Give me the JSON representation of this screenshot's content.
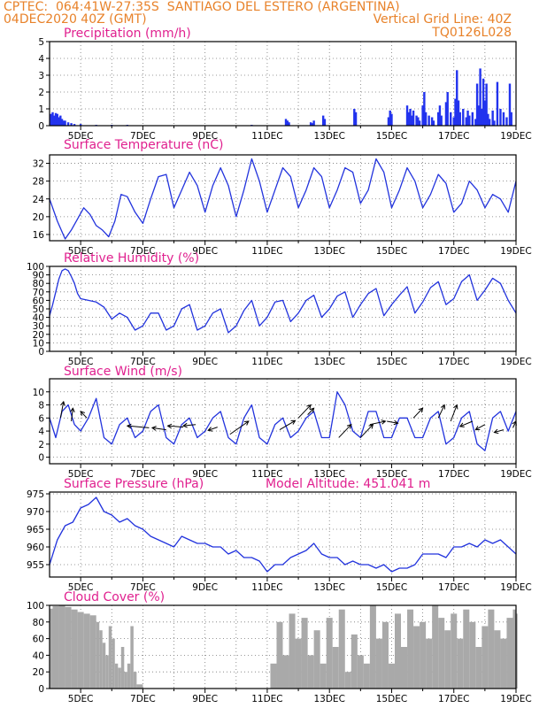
{
  "header": {
    "line1_left": "CPTEC:  064:41W-27:35S  SANTIAGO DEL ESTERO (ARGENTINA)",
    "line2_left": "04DEC2020 40Z (GMT)",
    "line2_right": "Vertical Grid Line: 40Z",
    "line3_right": "TQ0126L028"
  },
  "colors": {
    "header": "#e8822a",
    "title": "#e0208f",
    "line": "#2233dd",
    "bar": "#2233ee",
    "cloud": "#a9a9a9"
  },
  "x_axis": {
    "labels": [
      "5DEC",
      "7DEC",
      "9DEC",
      "11DEC",
      "13DEC",
      "15DEC",
      "17DEC",
      "19DEC"
    ],
    "range_days": [
      4.0,
      19.0
    ]
  },
  "chart_data": [
    {
      "id": "precip",
      "type": "bar",
      "title": "Precipitation (mm/h)",
      "ylim": [
        0,
        5
      ],
      "yticks": [
        0,
        1,
        2,
        3,
        4,
        5
      ],
      "x": [
        4.05,
        4.1,
        4.15,
        4.2,
        4.25,
        4.3,
        4.35,
        4.4,
        4.45,
        4.5,
        4.6,
        4.7,
        4.8,
        5.0,
        5.5,
        6.0,
        6.5,
        10.5,
        11.6,
        11.65,
        11.7,
        12.4,
        12.45,
        12.5,
        12.8,
        12.85,
        13.8,
        13.85,
        14.9,
        14.95,
        15.0,
        15.5,
        15.55,
        15.6,
        15.65,
        15.7,
        15.8,
        15.85,
        15.9,
        16.0,
        16.05,
        16.1,
        16.2,
        16.3,
        16.35,
        16.5,
        16.55,
        16.6,
        16.75,
        16.8,
        16.9,
        17.0,
        17.05,
        17.1,
        17.15,
        17.2,
        17.3,
        17.4,
        17.45,
        17.5,
        17.6,
        17.7,
        17.75,
        17.8,
        17.85,
        17.9,
        17.95,
        18.0,
        18.05,
        18.1,
        18.15,
        18.25,
        18.3,
        18.4,
        18.5,
        18.6,
        18.7,
        18.8,
        18.85
      ],
      "values": [
        0.7,
        0.8,
        0.6,
        0.75,
        0.7,
        0.5,
        0.6,
        0.4,
        0.3,
        0.3,
        0.2,
        0.15,
        0.1,
        0.1,
        0.05,
        0.05,
        0.05,
        0.05,
        0.4,
        0.3,
        0.2,
        0.2,
        0.15,
        0.3,
        0.6,
        0.4,
        1.0,
        0.8,
        0.5,
        0.9,
        0.7,
        1.2,
        0.8,
        1.0,
        0.6,
        0.9,
        0.6,
        0.5,
        0.3,
        1.2,
        2.0,
        0.8,
        0.6,
        0.5,
        0.3,
        0.8,
        1.2,
        0.6,
        1.4,
        2.0,
        0.8,
        0.5,
        1.6,
        3.3,
        1.5,
        0.8,
        1.0,
        0.5,
        0.9,
        0.6,
        0.8,
        0.4,
        2.5,
        1.2,
        3.4,
        1.0,
        2.8,
        1.5,
        2.5,
        0.7,
        0.4,
        0.9,
        0.3,
        2.6,
        1.0,
        0.8,
        0.5,
        2.5,
        0.8
      ]
    },
    {
      "id": "temp",
      "type": "line",
      "title": "Surface Temperature (nC)",
      "ylim": [
        14.6,
        33.9
      ],
      "yticks": [
        16,
        20,
        24,
        28,
        32
      ],
      "x": [
        4.0,
        4.25,
        4.5,
        4.7,
        4.9,
        5.1,
        5.3,
        5.5,
        5.7,
        5.9,
        6.1,
        6.3,
        6.5,
        6.75,
        7.0,
        7.25,
        7.5,
        7.75,
        8.0,
        8.25,
        8.5,
        8.75,
        9.0,
        9.25,
        9.5,
        9.75,
        10.0,
        10.25,
        10.5,
        10.75,
        11.0,
        11.25,
        11.5,
        11.75,
        12.0,
        12.25,
        12.5,
        12.75,
        13.0,
        13.25,
        13.5,
        13.75,
        14.0,
        14.25,
        14.5,
        14.75,
        15.0,
        15.25,
        15.5,
        15.75,
        16.0,
        16.25,
        16.5,
        16.75,
        17.0,
        17.25,
        17.5,
        17.75,
        18.0,
        18.25,
        18.5,
        18.75,
        19.0
      ],
      "values": [
        24,
        19,
        15,
        17,
        19.5,
        22,
        20.5,
        18,
        17,
        15.5,
        19,
        25,
        24.5,
        21,
        18.5,
        24,
        29,
        29.5,
        22,
        26,
        30,
        27,
        21,
        27,
        31,
        27,
        20,
        26,
        33,
        28,
        21,
        26,
        31,
        29,
        22,
        26,
        31,
        29,
        22,
        26,
        31,
        30,
        23,
        26,
        33,
        30,
        22,
        26,
        31,
        28,
        22,
        25,
        29.5,
        27.5,
        21,
        23,
        28,
        26,
        22,
        25,
        24,
        21,
        28
      ]
    },
    {
      "id": "rh",
      "type": "line",
      "title": "Relative Humidity (%)",
      "ylim": [
        0,
        100
      ],
      "yticks": [
        0,
        10,
        20,
        30,
        40,
        50,
        60,
        70,
        80,
        90,
        100
      ],
      "x": [
        4.0,
        4.1,
        4.2,
        4.3,
        4.4,
        4.5,
        4.6,
        4.7,
        4.8,
        4.9,
        5.0,
        5.25,
        5.5,
        5.75,
        6.0,
        6.25,
        6.5,
        6.75,
        7.0,
        7.25,
        7.5,
        7.75,
        8.0,
        8.25,
        8.5,
        8.75,
        9.0,
        9.25,
        9.5,
        9.75,
        10.0,
        10.25,
        10.5,
        10.75,
        11.0,
        11.25,
        11.5,
        11.75,
        12.0,
        12.25,
        12.5,
        12.75,
        13.0,
        13.25,
        13.5,
        13.75,
        14.0,
        14.25,
        14.5,
        14.75,
        15.0,
        15.25,
        15.5,
        15.75,
        16.0,
        16.25,
        16.5,
        16.75,
        17.0,
        17.25,
        17.5,
        17.75,
        18.0,
        18.25,
        18.5,
        18.75,
        19.0
      ],
      "values": [
        42,
        55,
        70,
        85,
        95,
        97,
        95,
        88,
        80,
        68,
        62,
        60,
        58,
        52,
        38,
        45,
        40,
        25,
        30,
        45,
        45,
        25,
        30,
        50,
        55,
        25,
        30,
        45,
        50,
        22,
        30,
        48,
        60,
        30,
        40,
        58,
        60,
        35,
        45,
        60,
        66,
        40,
        50,
        65,
        70,
        40,
        55,
        68,
        74,
        42,
        55,
        66,
        76,
        45,
        58,
        75,
        82,
        55,
        62,
        82,
        90,
        60,
        72,
        86,
        80,
        60,
        45
      ]
    },
    {
      "id": "wind",
      "type": "line",
      "title": "Surface Wind (m/s)",
      "ylim": [
        -1,
        12
      ],
      "yticks": [
        0,
        2,
        4,
        6,
        8,
        10
      ],
      "x": [
        4.0,
        4.2,
        4.4,
        4.6,
        4.8,
        5.0,
        5.25,
        5.5,
        5.75,
        6.0,
        6.25,
        6.5,
        6.75,
        7.0,
        7.25,
        7.5,
        7.75,
        8.0,
        8.25,
        8.5,
        8.75,
        9.0,
        9.25,
        9.5,
        9.75,
        10.0,
        10.25,
        10.5,
        10.75,
        11.0,
        11.25,
        11.5,
        11.75,
        12.0,
        12.25,
        12.5,
        12.75,
        13.0,
        13.25,
        13.5,
        13.75,
        14.0,
        14.25,
        14.5,
        14.75,
        15.0,
        15.25,
        15.5,
        15.75,
        16.0,
        16.25,
        16.5,
        16.75,
        17.0,
        17.25,
        17.5,
        17.75,
        18.0,
        18.25,
        18.5,
        18.75,
        19.0
      ],
      "values": [
        6,
        3,
        7,
        8,
        5,
        4,
        6,
        9,
        3,
        2,
        5,
        6,
        3,
        4,
        7,
        8,
        3,
        2,
        5,
        6,
        3,
        4,
        6,
        7,
        3,
        2,
        6,
        8,
        3,
        2,
        5,
        6,
        3,
        4,
        6,
        7,
        3,
        3,
        10,
        8,
        4,
        3,
        7,
        7,
        3,
        3,
        6,
        6,
        3,
        3,
        6,
        7,
        2,
        3,
        6,
        7,
        2,
        1,
        6,
        7,
        4,
        7
      ]
    },
    {
      "id": "pressure",
      "type": "line",
      "title": "Surface Pressure (hPa)",
      "annotation": "Model Altitude: 451.041 m",
      "ylim": [
        951.5,
        975.5
      ],
      "yticks": [
        955,
        960,
        965,
        970,
        975
      ],
      "x": [
        4.0,
        4.25,
        4.5,
        4.75,
        5.0,
        5.25,
        5.5,
        5.75,
        6.0,
        6.25,
        6.5,
        6.75,
        7.0,
        7.25,
        7.5,
        7.75,
        8.0,
        8.25,
        8.5,
        8.75,
        9.0,
        9.25,
        9.5,
        9.75,
        10.0,
        10.25,
        10.5,
        10.75,
        11.0,
        11.25,
        11.5,
        11.75,
        12.0,
        12.25,
        12.5,
        12.75,
        13.0,
        13.25,
        13.5,
        13.75,
        14.0,
        14.25,
        14.5,
        14.75,
        15.0,
        15.25,
        15.5,
        15.75,
        16.0,
        16.25,
        16.5,
        16.75,
        17.0,
        17.25,
        17.5,
        17.75,
        18.0,
        18.25,
        18.5,
        18.75,
        19.0
      ],
      "values": [
        955,
        962,
        966,
        967,
        971,
        972,
        974,
        970,
        969,
        967,
        968,
        966,
        965,
        963,
        962,
        961,
        960,
        963,
        962,
        961,
        961,
        960,
        960,
        958,
        959,
        957,
        957,
        956,
        953,
        955,
        955,
        957,
        958,
        959,
        961,
        958,
        957,
        957,
        955,
        956,
        955,
        955,
        954,
        955,
        953,
        954,
        954,
        955,
        958,
        958,
        958,
        957,
        960,
        960,
        961,
        960,
        962,
        961,
        962,
        960,
        958
      ]
    },
    {
      "id": "cloud",
      "type": "area",
      "title": "Cloud Cover (%)",
      "ylim": [
        0,
        100
      ],
      "yticks": [
        0,
        20,
        40,
        60,
        80,
        100
      ],
      "x": [
        4.0,
        4.1,
        4.3,
        4.5,
        4.7,
        4.9,
        5.1,
        5.3,
        5.5,
        5.6,
        5.7,
        5.8,
        5.9,
        6.0,
        6.1,
        6.2,
        6.3,
        6.4,
        6.5,
        6.6,
        6.7,
        6.8,
        7.0,
        10.9,
        11.1,
        11.3,
        11.5,
        11.7,
        11.9,
        12.1,
        12.3,
        12.5,
        12.7,
        12.9,
        13.1,
        13.3,
        13.5,
        13.7,
        13.9,
        14.1,
        14.3,
        14.5,
        14.7,
        14.9,
        15.1,
        15.3,
        15.5,
        15.7,
        15.9,
        16.1,
        16.3,
        16.5,
        16.7,
        16.9,
        17.1,
        17.3,
        17.5,
        17.7,
        17.9,
        18.1,
        18.3,
        18.5,
        18.7,
        18.9,
        19.0
      ],
      "values": [
        96,
        99,
        100,
        98,
        95,
        92,
        90,
        88,
        80,
        70,
        55,
        40,
        75,
        60,
        30,
        25,
        50,
        20,
        30,
        75,
        20,
        5,
        0,
        0,
        30,
        80,
        40,
        90,
        60,
        85,
        40,
        70,
        30,
        85,
        50,
        95,
        20,
        65,
        40,
        30,
        100,
        60,
        80,
        30,
        90,
        50,
        95,
        75,
        80,
        60,
        100,
        85,
        70,
        90,
        60,
        95,
        80,
        50,
        75,
        95,
        70,
        60,
        85,
        95,
        90
      ]
    }
  ]
}
